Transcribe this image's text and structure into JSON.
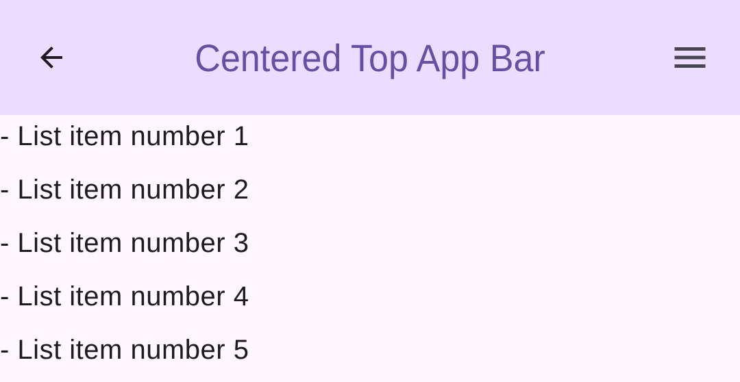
{
  "app_bar": {
    "title": "Centered Top App Bar",
    "navigation_icon": "arrow-back-icon",
    "action_icon": "menu-icon",
    "background_color": "#EADDFF",
    "title_color": "#6750A4"
  },
  "list": {
    "items": [
      {
        "label": "- List item number 1"
      },
      {
        "label": "- List item number 2"
      },
      {
        "label": "- List item number 3"
      },
      {
        "label": "- List item number 4"
      },
      {
        "label": "- List item number 5"
      }
    ]
  }
}
